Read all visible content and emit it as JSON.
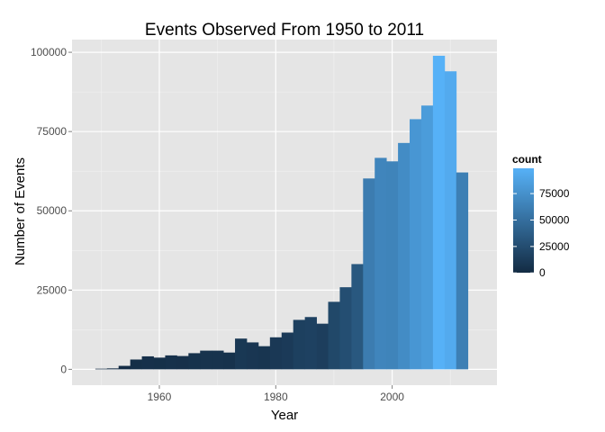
{
  "chart_data": {
    "type": "bar",
    "title": "Events Observed From 1950 to 2011",
    "xlabel": "Year",
    "ylabel": "Number of Events",
    "xlim": [
      1945,
      2018
    ],
    "ylim": [
      -5000,
      104000
    ],
    "x_ticks": [
      1960,
      1980,
      2000
    ],
    "x_tick_labels": [
      "1960",
      "1980",
      "2000"
    ],
    "y_ticks": [
      0,
      25000,
      50000,
      75000,
      100000
    ],
    "y_tick_labels": [
      "0",
      "25000",
      "50000",
      "75000",
      "100000"
    ],
    "grid": true,
    "bin_width": 2,
    "bins": [
      {
        "start": 1949,
        "end": 1951,
        "count": 200
      },
      {
        "start": 1951,
        "end": 1953,
        "count": 300
      },
      {
        "start": 1953,
        "end": 1955,
        "count": 1100
      },
      {
        "start": 1955,
        "end": 1957,
        "count": 3100
      },
      {
        "start": 1957,
        "end": 1959,
        "count": 4100
      },
      {
        "start": 1959,
        "end": 1961,
        "count": 3700
      },
      {
        "start": 1961,
        "end": 1963,
        "count": 4400
      },
      {
        "start": 1963,
        "end": 1965,
        "count": 4200
      },
      {
        "start": 1965,
        "end": 1967,
        "count": 5100
      },
      {
        "start": 1967,
        "end": 1969,
        "count": 5900
      },
      {
        "start": 1969,
        "end": 1971,
        "count": 5900
      },
      {
        "start": 1971,
        "end": 1973,
        "count": 5300
      },
      {
        "start": 1973,
        "end": 1975,
        "count": 9700
      },
      {
        "start": 1975,
        "end": 1977,
        "count": 8500
      },
      {
        "start": 1977,
        "end": 1979,
        "count": 7300
      },
      {
        "start": 1979,
        "end": 1981,
        "count": 10100
      },
      {
        "start": 1981,
        "end": 1983,
        "count": 11600
      },
      {
        "start": 1983,
        "end": 1985,
        "count": 15600
      },
      {
        "start": 1985,
        "end": 1987,
        "count": 16500
      },
      {
        "start": 1987,
        "end": 1989,
        "count": 14400
      },
      {
        "start": 1989,
        "end": 1991,
        "count": 21300
      },
      {
        "start": 1991,
        "end": 1993,
        "count": 25900
      },
      {
        "start": 1993,
        "end": 1995,
        "count": 33200
      },
      {
        "start": 1995,
        "end": 1997,
        "count": 60200
      },
      {
        "start": 1997,
        "end": 1999,
        "count": 66700
      },
      {
        "start": 1999,
        "end": 2001,
        "count": 65600
      },
      {
        "start": 2001,
        "end": 2003,
        "count": 71400
      },
      {
        "start": 2003,
        "end": 2005,
        "count": 78900
      },
      {
        "start": 2005,
        "end": 2007,
        "count": 83200
      },
      {
        "start": 2007,
        "end": 2009,
        "count": 98900
      },
      {
        "start": 2009,
        "end": 2011,
        "count": 94000
      },
      {
        "start": 2011,
        "end": 2013,
        "count": 62100
      }
    ],
    "legend": {
      "title": "count",
      "placement": "right",
      "breaks": [
        0,
        25000,
        50000,
        75000
      ],
      "break_labels": [
        "0",
        "25000",
        "50000",
        "75000"
      ],
      "min": 200,
      "max": 98900,
      "low_color": "#132b43",
      "high_color": "#56b1f7"
    },
    "colors": {
      "panel_background": "#e5e5e5",
      "grid_major": "#ffffff",
      "grid_minor": "#f2f2f2",
      "tick_text": "#4d4d4d"
    }
  }
}
